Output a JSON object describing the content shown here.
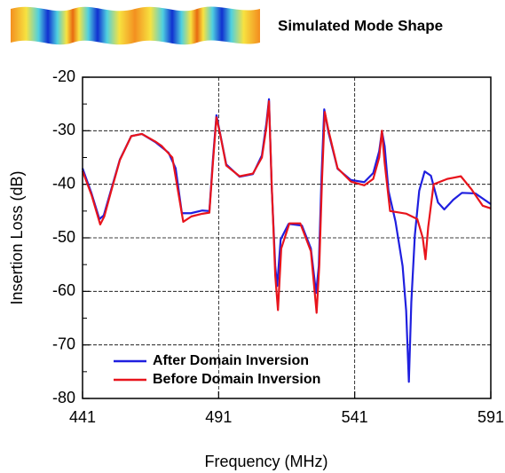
{
  "chart_data": {
    "type": "line",
    "annotation": "Simulated Mode Shape",
    "xlabel": "Frequency (MHz)",
    "ylabel": "Insertion Loss (dB)",
    "xlim": [
      441,
      591
    ],
    "xticks": [
      441,
      491,
      541,
      591
    ],
    "ylim": [
      -80,
      -20
    ],
    "yticks": [
      -80,
      -70,
      -60,
      -50,
      -40,
      -30,
      -20
    ],
    "yminorticks": [
      -75,
      -65,
      -55,
      -45,
      -35,
      -25
    ],
    "grid": true,
    "legend": "lower left",
    "series": [
      {
        "name": "After Domain Inversion",
        "color": "#1f1fdf",
        "x": [
          441,
          444.3,
          447.2,
          448.8,
          451.4,
          454.7,
          458.9,
          462.8,
          467.7,
          472.6,
          475.2,
          477.5,
          480.8,
          485,
          487.6,
          488.9,
          490.2,
          491.5,
          493.8,
          498.7,
          503.6,
          506.9,
          508.5,
          509.5,
          510.5,
          511.8,
          512.5,
          513.8,
          516.7,
          521.6,
          524.9,
          526.8,
          527.8,
          528.8,
          529.8,
          531.4,
          534.7,
          539.6,
          544.5,
          547.8,
          550,
          551,
          552,
          553.4,
          556,
          558.6,
          559.9,
          560.9,
          561.8,
          563.1,
          564.7,
          566.7,
          569,
          571.6,
          573.9,
          577.2,
          580.4,
          585.3,
          591
        ],
        "values": [
          -37,
          -41.7,
          -46.5,
          -45.8,
          -41.2,
          -35.4,
          -31,
          -30.6,
          -32.1,
          -34.1,
          -37,
          -45.4,
          -45.4,
          -44.9,
          -45,
          -35.4,
          -27.1,
          -30.4,
          -36.3,
          -38.6,
          -38.1,
          -34.6,
          -28.8,
          -24.1,
          -40.4,
          -55.3,
          -59,
          -50.3,
          -47.4,
          -47.7,
          -52,
          -60.3,
          -55.3,
          -38.7,
          -26,
          -30.4,
          -37.1,
          -39.2,
          -39.6,
          -37.9,
          -33.8,
          -30.1,
          -32.9,
          -41.2,
          -47,
          -55.3,
          -63.6,
          -76.9,
          -62,
          -49.5,
          -41.2,
          -37.6,
          -38.4,
          -43.4,
          -44.7,
          -42.9,
          -41.6,
          -41.7,
          -43.7
        ]
      },
      {
        "name": "Before Domain Inversion",
        "color": "#e8141c",
        "x": [
          441,
          444.3,
          447.5,
          449,
          451.4,
          454.7,
          458.9,
          462.8,
          467.7,
          470,
          474,
          476,
          478,
          481,
          485,
          487.6,
          488.9,
          490.2,
          491.5,
          493.8,
          498.7,
          503.6,
          506.9,
          508.5,
          509.5,
          510.5,
          511.8,
          512.8,
          514,
          517,
          521,
          524.9,
          527,
          528,
          529,
          530,
          531.4,
          534.7,
          539.6,
          544.5,
          547.8,
          550,
          551,
          552,
          554,
          560,
          564,
          566,
          567,
          568,
          570,
          575,
          580,
          584,
          588,
          591
        ],
        "values": [
          -37.5,
          -42,
          -47.5,
          -46,
          -41.5,
          -35.5,
          -31,
          -30.6,
          -32,
          -32.8,
          -35,
          -41,
          -47,
          -46,
          -45.5,
          -45.3,
          -36,
          -27.5,
          -30.5,
          -36.5,
          -38.5,
          -38,
          -35,
          -29.5,
          -24.5,
          -40,
          -57,
          -63.5,
          -52,
          -47.3,
          -47.3,
          -52.5,
          -64,
          -55,
          -39,
          -26.5,
          -30,
          -37,
          -39.5,
          -40.2,
          -39,
          -35,
          -30,
          -36,
          -45,
          -45.5,
          -46.5,
          -50,
          -54,
          -48,
          -40,
          -39,
          -38.5,
          -41,
          -44,
          -44.5
        ]
      }
    ]
  }
}
